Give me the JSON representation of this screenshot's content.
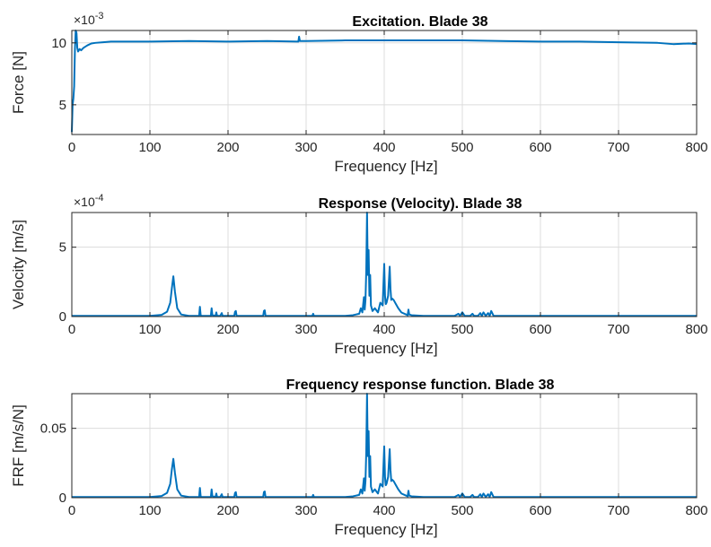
{
  "page": {
    "background": "#ffffff",
    "series_color": "#0072BD",
    "grid_color": "#dcdcdc"
  },
  "chart_data": [
    {
      "type": "line",
      "title": "Excitation. Blade 38",
      "xlabel": "Frequency [Hz]",
      "ylabel": "Force [N]",
      "exponent_label": "×10^-3",
      "exponent_base": "×10",
      "exponent_power": "-3",
      "xlim": [
        0,
        800
      ],
      "ylim": [
        2.6,
        11
      ],
      "xticks": [
        0,
        100,
        200,
        300,
        400,
        500,
        600,
        700,
        800
      ],
      "yticks": [
        5,
        10
      ],
      "xtick_labels": [
        "0",
        "100",
        "200",
        "300",
        "400",
        "500",
        "600",
        "700",
        "800"
      ],
      "ytick_labels": [
        "5",
        "10"
      ],
      "grid": true,
      "series": [
        {
          "x": [
            0,
            1,
            2,
            3,
            4,
            5,
            6,
            7,
            8,
            10,
            12,
            15,
            20,
            25,
            30,
            40,
            50,
            60,
            80,
            100,
            150,
            200,
            250,
            290,
            291,
            292,
            300,
            350,
            400,
            450,
            500,
            550,
            600,
            650,
            700,
            750,
            770,
            790,
            800
          ],
          "y": [
            2.8,
            5.0,
            5.5,
            6.5,
            9.5,
            11.0,
            10.8,
            9.6,
            9.3,
            9.5,
            9.4,
            9.6,
            9.8,
            9.95,
            10.0,
            10.05,
            10.1,
            10.1,
            10.1,
            10.1,
            10.15,
            10.1,
            10.15,
            10.1,
            10.5,
            10.15,
            10.15,
            10.2,
            10.2,
            10.2,
            10.2,
            10.15,
            10.1,
            10.1,
            10.05,
            10.0,
            9.9,
            9.95,
            9.9
          ]
        }
      ]
    },
    {
      "type": "line",
      "title": "Response (Velocity). Blade 38",
      "xlabel": "Frequency [Hz]",
      "ylabel": "Velocity [m/s]",
      "exponent_label": "×10^-4",
      "exponent_base": "×10",
      "exponent_power": "-4",
      "xlim": [
        0,
        800
      ],
      "ylim": [
        0,
        7.5
      ],
      "xticks": [
        0,
        100,
        200,
        300,
        400,
        500,
        600,
        700,
        800
      ],
      "yticks": [
        0,
        5
      ],
      "xtick_labels": [
        "0",
        "100",
        "200",
        "300",
        "400",
        "500",
        "600",
        "700",
        "800"
      ],
      "ytick_labels": [
        "0",
        "5"
      ],
      "grid": true,
      "series": [
        {
          "x": [
            0,
            100,
            115,
            122,
            126,
            128,
            130,
            132,
            135,
            140,
            150,
            163,
            164,
            165,
            166,
            170,
            178,
            179,
            180,
            184,
            185,
            186,
            190,
            192,
            193,
            200,
            208,
            209,
            210,
            211,
            215,
            245,
            246,
            247,
            248,
            250,
            300,
            308,
            309,
            310,
            320,
            350,
            360,
            368,
            370,
            372,
            374,
            375,
            376,
            377,
            378,
            379,
            380,
            381,
            382,
            383,
            385,
            388,
            392,
            395,
            398,
            400,
            401,
            402,
            403,
            405,
            407,
            408,
            409,
            410,
            412,
            415,
            418,
            422,
            428,
            430,
            431,
            432,
            435,
            450,
            470,
            490,
            495,
            497,
            500,
            503,
            505,
            510,
            513,
            515,
            520,
            523,
            525,
            527,
            530,
            533,
            535,
            537,
            540,
            550,
            600,
            700,
            800
          ],
          "y": [
            0.05,
            0.05,
            0.12,
            0.35,
            1.0,
            2.0,
            2.9,
            1.8,
            0.6,
            0.15,
            0.05,
            0.05,
            0.7,
            0.1,
            0.05,
            0.05,
            0.05,
            0.6,
            0.1,
            0.05,
            0.3,
            0.05,
            0.05,
            0.25,
            0.05,
            0.05,
            0.05,
            0.35,
            0.4,
            0.05,
            0.05,
            0.05,
            0.4,
            0.45,
            0.05,
            0.05,
            0.05,
            0.05,
            0.2,
            0.05,
            0.05,
            0.05,
            0.1,
            0.2,
            0.6,
            0.3,
            1.4,
            0.5,
            1.2,
            3.3,
            7.5,
            3.0,
            4.8,
            1.5,
            3.0,
            0.8,
            0.4,
            0.6,
            0.3,
            1.0,
            0.8,
            3.8,
            1.5,
            0.9,
            1.0,
            1.5,
            3.6,
            2.0,
            1.2,
            1.3,
            1.2,
            0.9,
            0.6,
            0.3,
            0.15,
            0.1,
            0.5,
            0.15,
            0.1,
            0.05,
            0.05,
            0.05,
            0.2,
            0.05,
            0.3,
            0.05,
            0.05,
            0.05,
            0.2,
            0.05,
            0.05,
            0.25,
            0.05,
            0.3,
            0.05,
            0.25,
            0.05,
            0.4,
            0.05,
            0.05,
            0.05,
            0.05,
            0.05
          ]
        }
      ]
    },
    {
      "type": "line",
      "title": "Frequency response function. Blade 38",
      "xlabel": "Frequency [Hz]",
      "ylabel": "FRF [m/s/N]",
      "xlim": [
        0,
        800
      ],
      "ylim": [
        0,
        0.075
      ],
      "xticks": [
        0,
        100,
        200,
        300,
        400,
        500,
        600,
        700,
        800
      ],
      "yticks": [
        0,
        0.05
      ],
      "xtick_labels": [
        "0",
        "100",
        "200",
        "300",
        "400",
        "500",
        "600",
        "700",
        "800"
      ],
      "ytick_labels": [
        "0",
        "0.05"
      ],
      "grid": true,
      "series": [
        {
          "x": [
            0,
            100,
            115,
            122,
            126,
            128,
            130,
            132,
            135,
            140,
            150,
            163,
            164,
            165,
            166,
            170,
            178,
            179,
            180,
            184,
            185,
            186,
            190,
            192,
            193,
            200,
            208,
            209,
            210,
            211,
            215,
            245,
            246,
            247,
            248,
            250,
            300,
            308,
            309,
            310,
            320,
            350,
            360,
            368,
            370,
            372,
            374,
            375,
            376,
            377,
            378,
            379,
            380,
            381,
            382,
            383,
            385,
            388,
            392,
            395,
            398,
            400,
            401,
            402,
            403,
            405,
            407,
            408,
            409,
            410,
            412,
            415,
            418,
            422,
            428,
            430,
            431,
            432,
            435,
            450,
            470,
            490,
            495,
            497,
            500,
            503,
            505,
            510,
            513,
            515,
            520,
            523,
            525,
            527,
            530,
            533,
            535,
            537,
            540,
            550,
            600,
            700,
            800
          ],
          "y": [
            0.0005,
            0.0005,
            0.0012,
            0.0035,
            0.01,
            0.02,
            0.028,
            0.018,
            0.006,
            0.0015,
            0.0005,
            0.0005,
            0.007,
            0.001,
            0.0005,
            0.0005,
            0.0005,
            0.006,
            0.001,
            0.0005,
            0.003,
            0.0005,
            0.0005,
            0.0025,
            0.0005,
            0.0005,
            0.0005,
            0.0035,
            0.004,
            0.0005,
            0.0005,
            0.0005,
            0.004,
            0.0045,
            0.0005,
            0.0005,
            0.0005,
            0.0005,
            0.002,
            0.0005,
            0.0005,
            0.0005,
            0.001,
            0.002,
            0.006,
            0.003,
            0.014,
            0.005,
            0.012,
            0.033,
            0.075,
            0.03,
            0.048,
            0.015,
            0.03,
            0.008,
            0.004,
            0.006,
            0.003,
            0.01,
            0.008,
            0.037,
            0.015,
            0.009,
            0.01,
            0.015,
            0.035,
            0.02,
            0.012,
            0.013,
            0.012,
            0.009,
            0.006,
            0.003,
            0.0015,
            0.001,
            0.005,
            0.0015,
            0.001,
            0.0005,
            0.0005,
            0.0005,
            0.002,
            0.0005,
            0.003,
            0.0005,
            0.0005,
            0.0005,
            0.002,
            0.0005,
            0.0005,
            0.0025,
            0.0005,
            0.003,
            0.0005,
            0.0025,
            0.0005,
            0.004,
            0.0005,
            0.0005,
            0.0005,
            0.0005,
            0.0005
          ]
        }
      ]
    }
  ]
}
